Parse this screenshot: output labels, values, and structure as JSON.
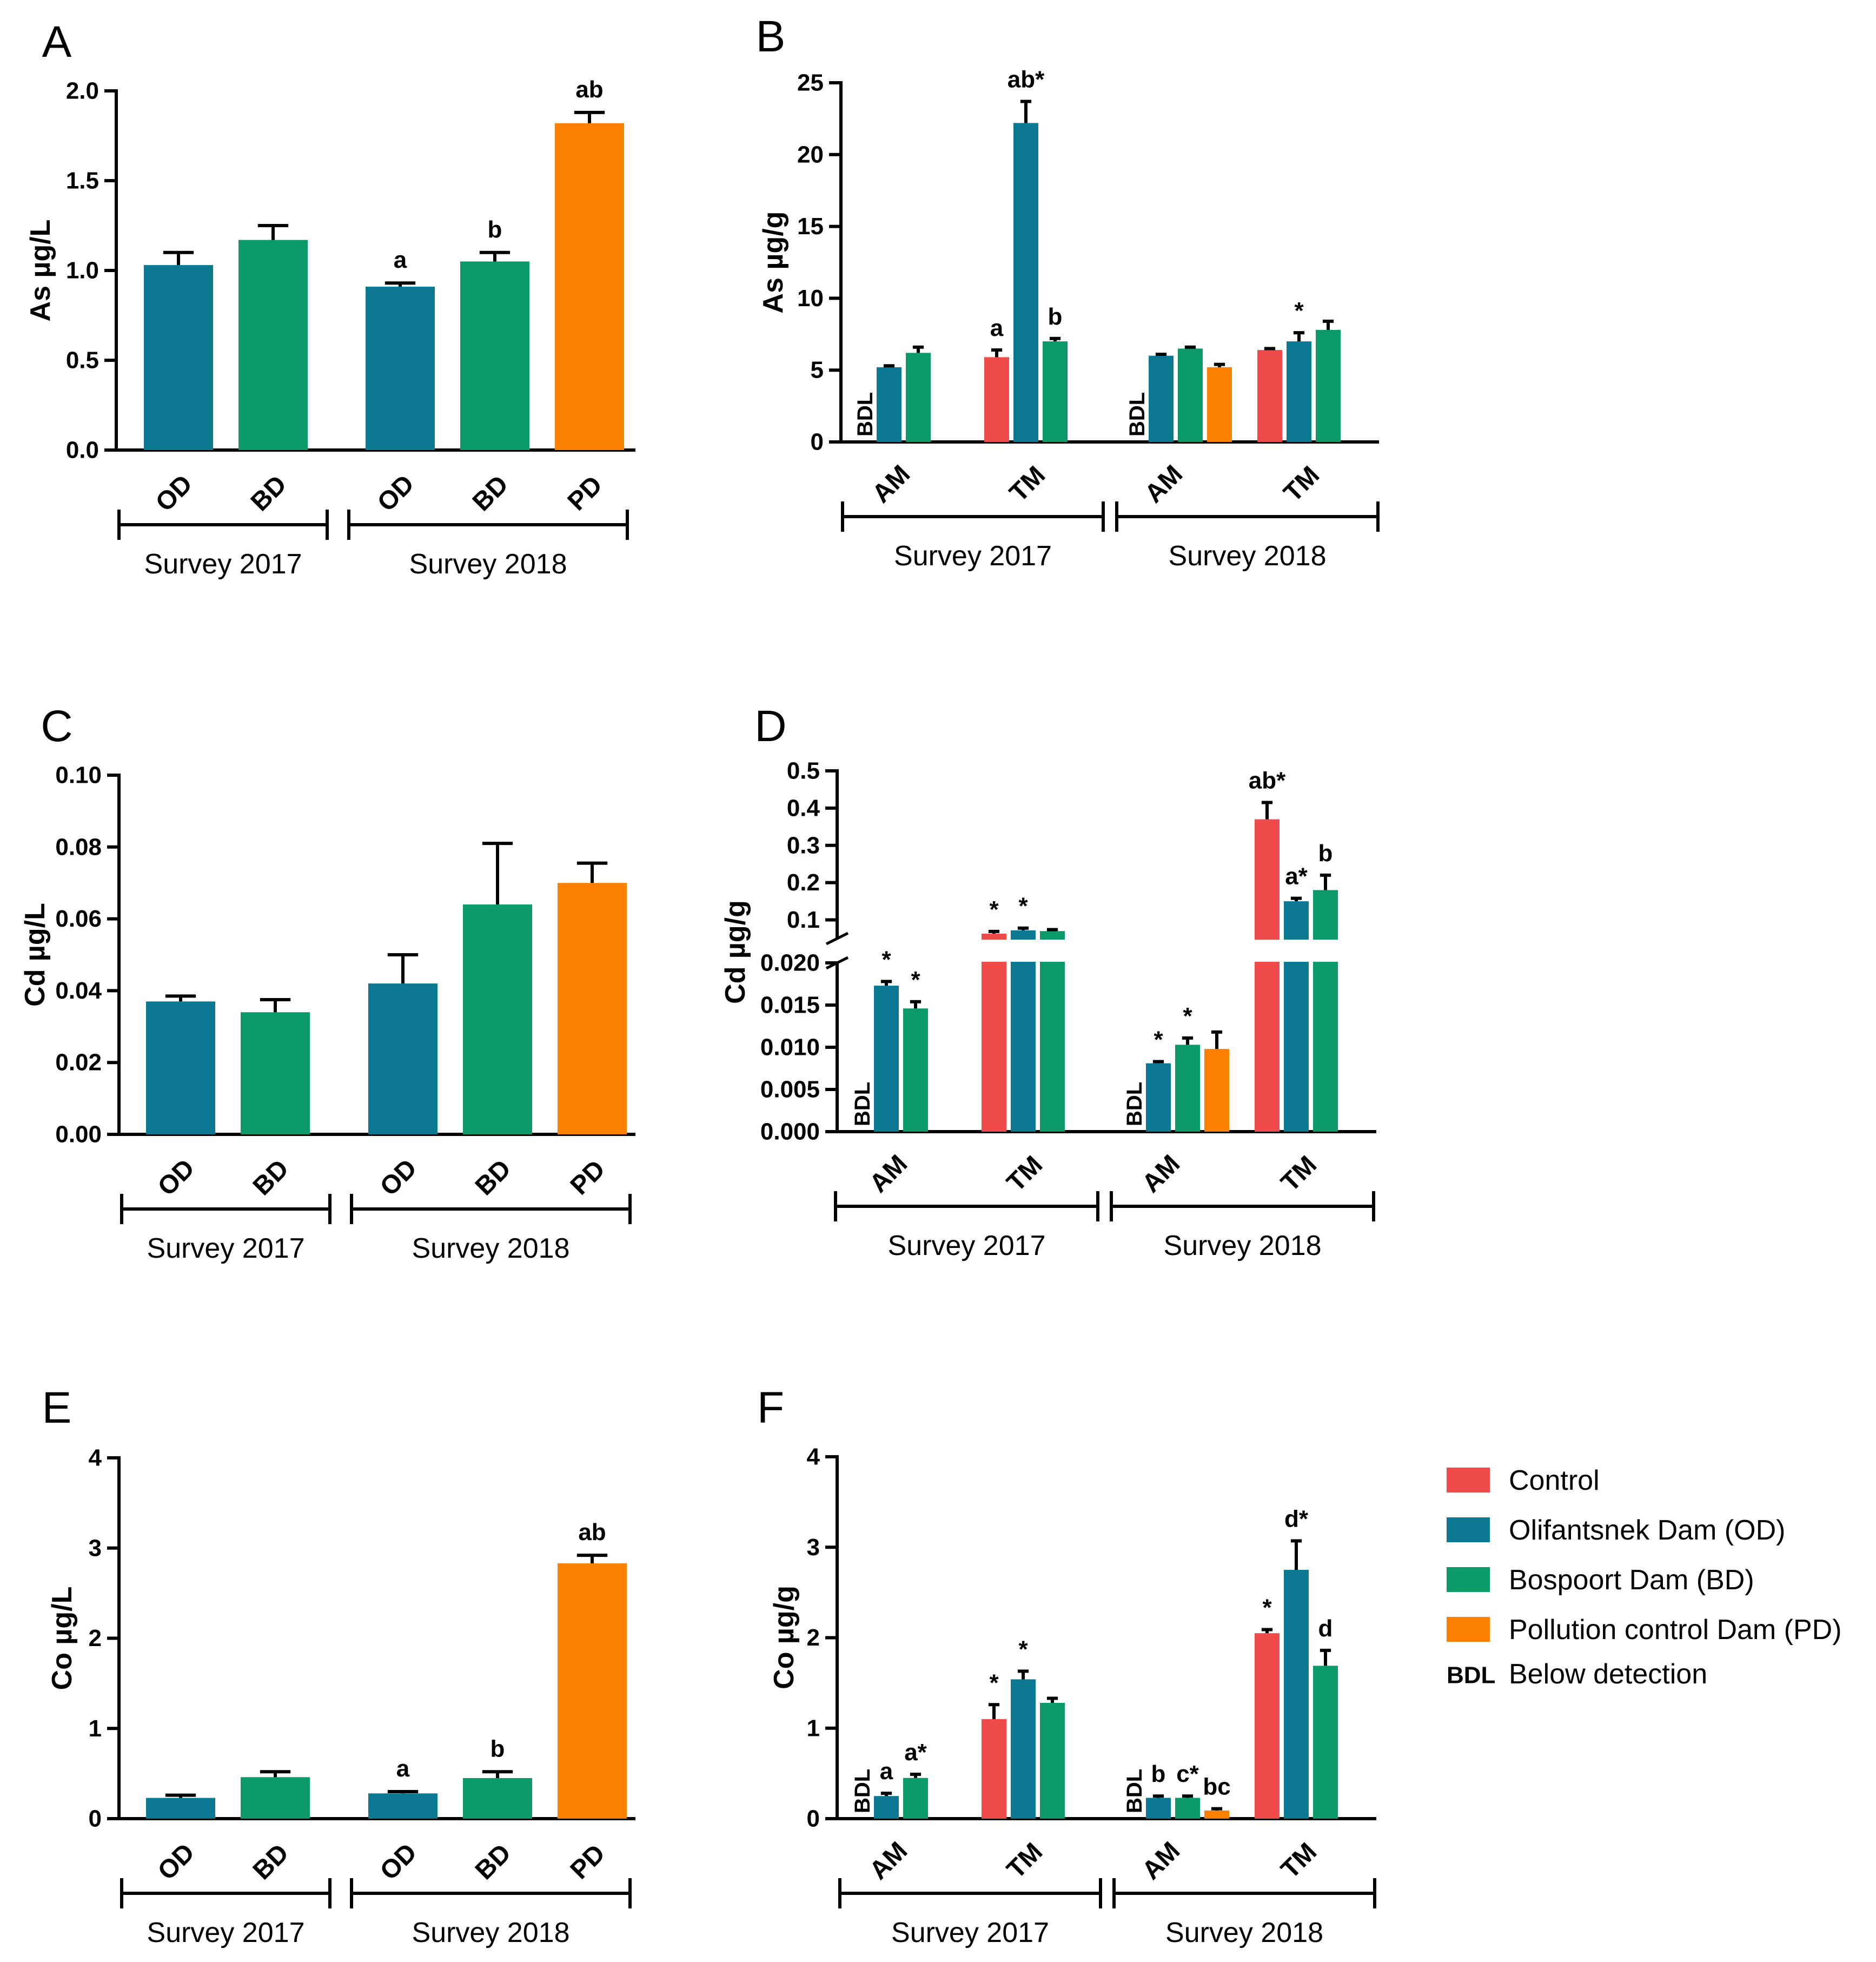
{
  "legend": {
    "items": [
      {
        "label": "Control",
        "color": "#f04b4b"
      },
      {
        "label": "Olifantsnek Dam (OD)",
        "color": "#0c7891"
      },
      {
        "label": "Bospoort Dam (BD)",
        "color": "#0c9a68"
      },
      {
        "label": "Pollution control Dam (PD)",
        "color": "#fb8000"
      }
    ],
    "bdl_abbr": "BDL",
    "bdl_text": "Below detection"
  },
  "chart_data": [
    {
      "id": "A",
      "panel_label": "A",
      "type": "bar",
      "ylabel": "As µg/L",
      "ylim": [
        0,
        2.0
      ],
      "yticks": [
        0.0,
        0.5,
        1.0,
        1.5,
        2.0
      ],
      "tick_labels": [
        "0.0",
        "0.5",
        "1.0",
        "1.5",
        "2.0"
      ],
      "groups": [
        {
          "label": "Survey 2017",
          "bars": [
            {
              "category": "OD",
              "series": "OD",
              "value": 1.03,
              "error": 0.07,
              "annotation": ""
            },
            {
              "category": "BD",
              "series": "BD",
              "value": 1.17,
              "error": 0.08,
              "annotation": ""
            }
          ]
        },
        {
          "label": "Survey 2018",
          "bars": [
            {
              "category": "OD",
              "series": "OD",
              "value": 0.91,
              "error": 0.02,
              "annotation": "a"
            },
            {
              "category": "BD",
              "series": "BD",
              "value": 1.05,
              "error": 0.05,
              "annotation": "b"
            },
            {
              "category": "PD",
              "series": "PD",
              "value": 1.82,
              "error": 0.06,
              "annotation": "ab"
            }
          ]
        }
      ]
    },
    {
      "id": "B",
      "panel_label": "B",
      "type": "grouped-bar",
      "ylabel": "As µg/g",
      "ylim": [
        0,
        25
      ],
      "yticks": [
        0,
        5,
        10,
        15,
        20,
        25
      ],
      "tick_labels": [
        "0",
        "5",
        "10",
        "15",
        "20",
        "25"
      ],
      "groups": [
        {
          "label": "Survey 2017",
          "clusters": [
            {
              "category": "AM",
              "bars": [
                {
                  "series": "Control",
                  "value": null,
                  "error": 0,
                  "annotation": "BDL"
                },
                {
                  "series": "OD",
                  "value": 5.2,
                  "error": 0.1,
                  "annotation": ""
                },
                {
                  "series": "BD",
                  "value": 6.2,
                  "error": 0.4,
                  "annotation": ""
                }
              ]
            },
            {
              "category": "TM",
              "bars": [
                {
                  "series": "Control",
                  "value": 5.9,
                  "error": 0.5,
                  "annotation": "a"
                },
                {
                  "series": "OD",
                  "value": 22.2,
                  "error": 1.5,
                  "annotation": "ab*"
                },
                {
                  "series": "BD",
                  "value": 7.0,
                  "error": 0.2,
                  "annotation": "b"
                }
              ]
            }
          ]
        },
        {
          "label": "Survey 2018",
          "clusters": [
            {
              "category": "AM",
              "bars": [
                {
                  "series": "Control",
                  "value": null,
                  "error": 0,
                  "annotation": "BDL"
                },
                {
                  "series": "OD",
                  "value": 6.0,
                  "error": 0.1,
                  "annotation": ""
                },
                {
                  "series": "BD",
                  "value": 6.5,
                  "error": 0.1,
                  "annotation": ""
                },
                {
                  "series": "PD",
                  "value": 5.2,
                  "error": 0.2,
                  "annotation": ""
                }
              ]
            },
            {
              "category": "TM",
              "bars": [
                {
                  "series": "Control",
                  "value": 6.4,
                  "error": 0.1,
                  "annotation": ""
                },
                {
                  "series": "OD",
                  "value": 7.0,
                  "error": 0.6,
                  "annotation": "*"
                },
                {
                  "series": "BD",
                  "value": 7.8,
                  "error": 0.6,
                  "annotation": ""
                }
              ]
            }
          ]
        }
      ]
    },
    {
      "id": "C",
      "panel_label": "C",
      "type": "bar",
      "ylabel": "Cd µg/L",
      "ylim": [
        0,
        0.1
      ],
      "yticks": [
        0,
        0.02,
        0.04,
        0.06,
        0.08,
        0.1
      ],
      "tick_labels": [
        "0.00",
        "0.02",
        "0.04",
        "0.06",
        "0.08",
        "0.10"
      ],
      "groups": [
        {
          "label": "Survey 2017",
          "bars": [
            {
              "category": "OD",
              "series": "OD",
              "value": 0.037,
              "error": 0.0015,
              "annotation": ""
            },
            {
              "category": "BD",
              "series": "BD",
              "value": 0.034,
              "error": 0.0035,
              "annotation": ""
            }
          ]
        },
        {
          "label": "Survey 2018",
          "bars": [
            {
              "category": "OD",
              "series": "OD",
              "value": 0.042,
              "error": 0.008,
              "annotation": ""
            },
            {
              "category": "BD",
              "series": "BD",
              "value": 0.064,
              "error": 0.017,
              "annotation": ""
            },
            {
              "category": "PD",
              "series": "PD",
              "value": 0.07,
              "error": 0.0055,
              "annotation": ""
            }
          ]
        }
      ]
    },
    {
      "id": "D",
      "panel_label": "D",
      "type": "grouped-bar-broken-axis",
      "ylabel": "Cd µg/g",
      "lower_ylim": [
        0,
        0.02
      ],
      "upper_ylim": [
        0.05,
        0.5
      ],
      "lower_ticks": [
        0,
        0.005,
        0.01,
        0.015,
        0.02
      ],
      "lower_tick_labels": [
        "0.000",
        "0.005",
        "0.010",
        "0.015",
        "0.020"
      ],
      "upper_ticks": [
        0.1,
        0.2,
        0.3,
        0.4,
        0.5
      ],
      "upper_tick_labels": [
        "0.1",
        "0.2",
        "0.3",
        "0.4",
        "0.5"
      ],
      "groups": [
        {
          "label": "Survey 2017",
          "clusters": [
            {
              "category": "AM",
              "bars": [
                {
                  "series": "Control",
                  "value": null,
                  "error": 0,
                  "annotation": "BDL"
                },
                {
                  "series": "OD",
                  "value": 0.0173,
                  "error": 0.0005,
                  "annotation": "*"
                },
                {
                  "series": "BD",
                  "value": 0.0146,
                  "error": 0.0008,
                  "annotation": "*"
                }
              ]
            },
            {
              "category": "TM",
              "bars": [
                {
                  "series": "Control",
                  "value": 0.063,
                  "error": 0.006,
                  "annotation": "*"
                },
                {
                  "series": "OD",
                  "value": 0.072,
                  "error": 0.006,
                  "annotation": "*"
                },
                {
                  "series": "BD",
                  "value": 0.07,
                  "error": 0.004,
                  "annotation": ""
                }
              ]
            }
          ]
        },
        {
          "label": "Survey 2018",
          "clusters": [
            {
              "category": "AM",
              "bars": [
                {
                  "series": "Control",
                  "value": null,
                  "error": 0,
                  "annotation": "BDL"
                },
                {
                  "series": "OD",
                  "value": 0.0081,
                  "error": 0.0002,
                  "annotation": "*"
                },
                {
                  "series": "BD",
                  "value": 0.0103,
                  "error": 0.0008,
                  "annotation": "*"
                },
                {
                  "series": "PD",
                  "value": 0.0098,
                  "error": 0.002,
                  "annotation": ""
                }
              ]
            },
            {
              "category": "TM",
              "bars": [
                {
                  "series": "Control",
                  "value": 0.37,
                  "error": 0.045,
                  "annotation": "ab*"
                },
                {
                  "series": "OD",
                  "value": 0.15,
                  "error": 0.008,
                  "annotation": "a*"
                },
                {
                  "series": "BD",
                  "value": 0.18,
                  "error": 0.04,
                  "annotation": "b"
                }
              ]
            }
          ]
        }
      ]
    },
    {
      "id": "E",
      "panel_label": "E",
      "type": "bar",
      "ylabel": "Co µg/L",
      "ylim": [
        0,
        4
      ],
      "yticks": [
        0,
        1,
        2,
        3,
        4
      ],
      "tick_labels": [
        "0",
        "1",
        "2",
        "3",
        "4"
      ],
      "groups": [
        {
          "label": "Survey 2017",
          "bars": [
            {
              "category": "OD",
              "series": "OD",
              "value": 0.23,
              "error": 0.03,
              "annotation": ""
            },
            {
              "category": "BD",
              "series": "BD",
              "value": 0.46,
              "error": 0.06,
              "annotation": ""
            }
          ]
        },
        {
          "label": "Survey 2018",
          "bars": [
            {
              "category": "OD",
              "series": "OD",
              "value": 0.28,
              "error": 0.02,
              "annotation": "a"
            },
            {
              "category": "BD",
              "series": "BD",
              "value": 0.45,
              "error": 0.07,
              "annotation": "b"
            },
            {
              "category": "PD",
              "series": "PD",
              "value": 2.83,
              "error": 0.09,
              "annotation": "ab"
            }
          ]
        }
      ]
    },
    {
      "id": "F",
      "panel_label": "F",
      "type": "grouped-bar",
      "ylabel": "Co µg/g",
      "ylim": [
        0,
        4
      ],
      "yticks": [
        0,
        1,
        2,
        3,
        4
      ],
      "tick_labels": [
        "0",
        "1",
        "2",
        "3",
        "4"
      ],
      "groups": [
        {
          "label": "Survey 2017",
          "clusters": [
            {
              "category": "AM",
              "bars": [
                {
                  "series": "Control",
                  "value": null,
                  "error": 0,
                  "annotation": "BDL"
                },
                {
                  "series": "OD",
                  "value": 0.25,
                  "error": 0.03,
                  "annotation": "a"
                },
                {
                  "series": "BD",
                  "value": 0.45,
                  "error": 0.04,
                  "annotation": "a*"
                }
              ]
            },
            {
              "category": "TM",
              "bars": [
                {
                  "series": "Control",
                  "value": 1.1,
                  "error": 0.16,
                  "annotation": "*"
                },
                {
                  "series": "OD",
                  "value": 1.54,
                  "error": 0.09,
                  "annotation": "*"
                },
                {
                  "series": "BD",
                  "value": 1.28,
                  "error": 0.05,
                  "annotation": ""
                }
              ]
            }
          ]
        },
        {
          "label": "Survey 2018",
          "clusters": [
            {
              "category": "AM",
              "bars": [
                {
                  "series": "Control",
                  "value": null,
                  "error": 0,
                  "annotation": "BDL"
                },
                {
                  "series": "OD",
                  "value": 0.23,
                  "error": 0.02,
                  "annotation": "b"
                },
                {
                  "series": "BD",
                  "value": 0.23,
                  "error": 0.02,
                  "annotation": "c*"
                },
                {
                  "series": "PD",
                  "value": 0.09,
                  "error": 0.02,
                  "annotation": "bc"
                }
              ]
            },
            {
              "category": "TM",
              "bars": [
                {
                  "series": "Control",
                  "value": 2.05,
                  "error": 0.04,
                  "annotation": "*"
                },
                {
                  "series": "OD",
                  "value": 2.75,
                  "error": 0.32,
                  "annotation": "d*"
                },
                {
                  "series": "BD",
                  "value": 1.69,
                  "error": 0.17,
                  "annotation": "d"
                }
              ]
            }
          ]
        }
      ]
    }
  ]
}
